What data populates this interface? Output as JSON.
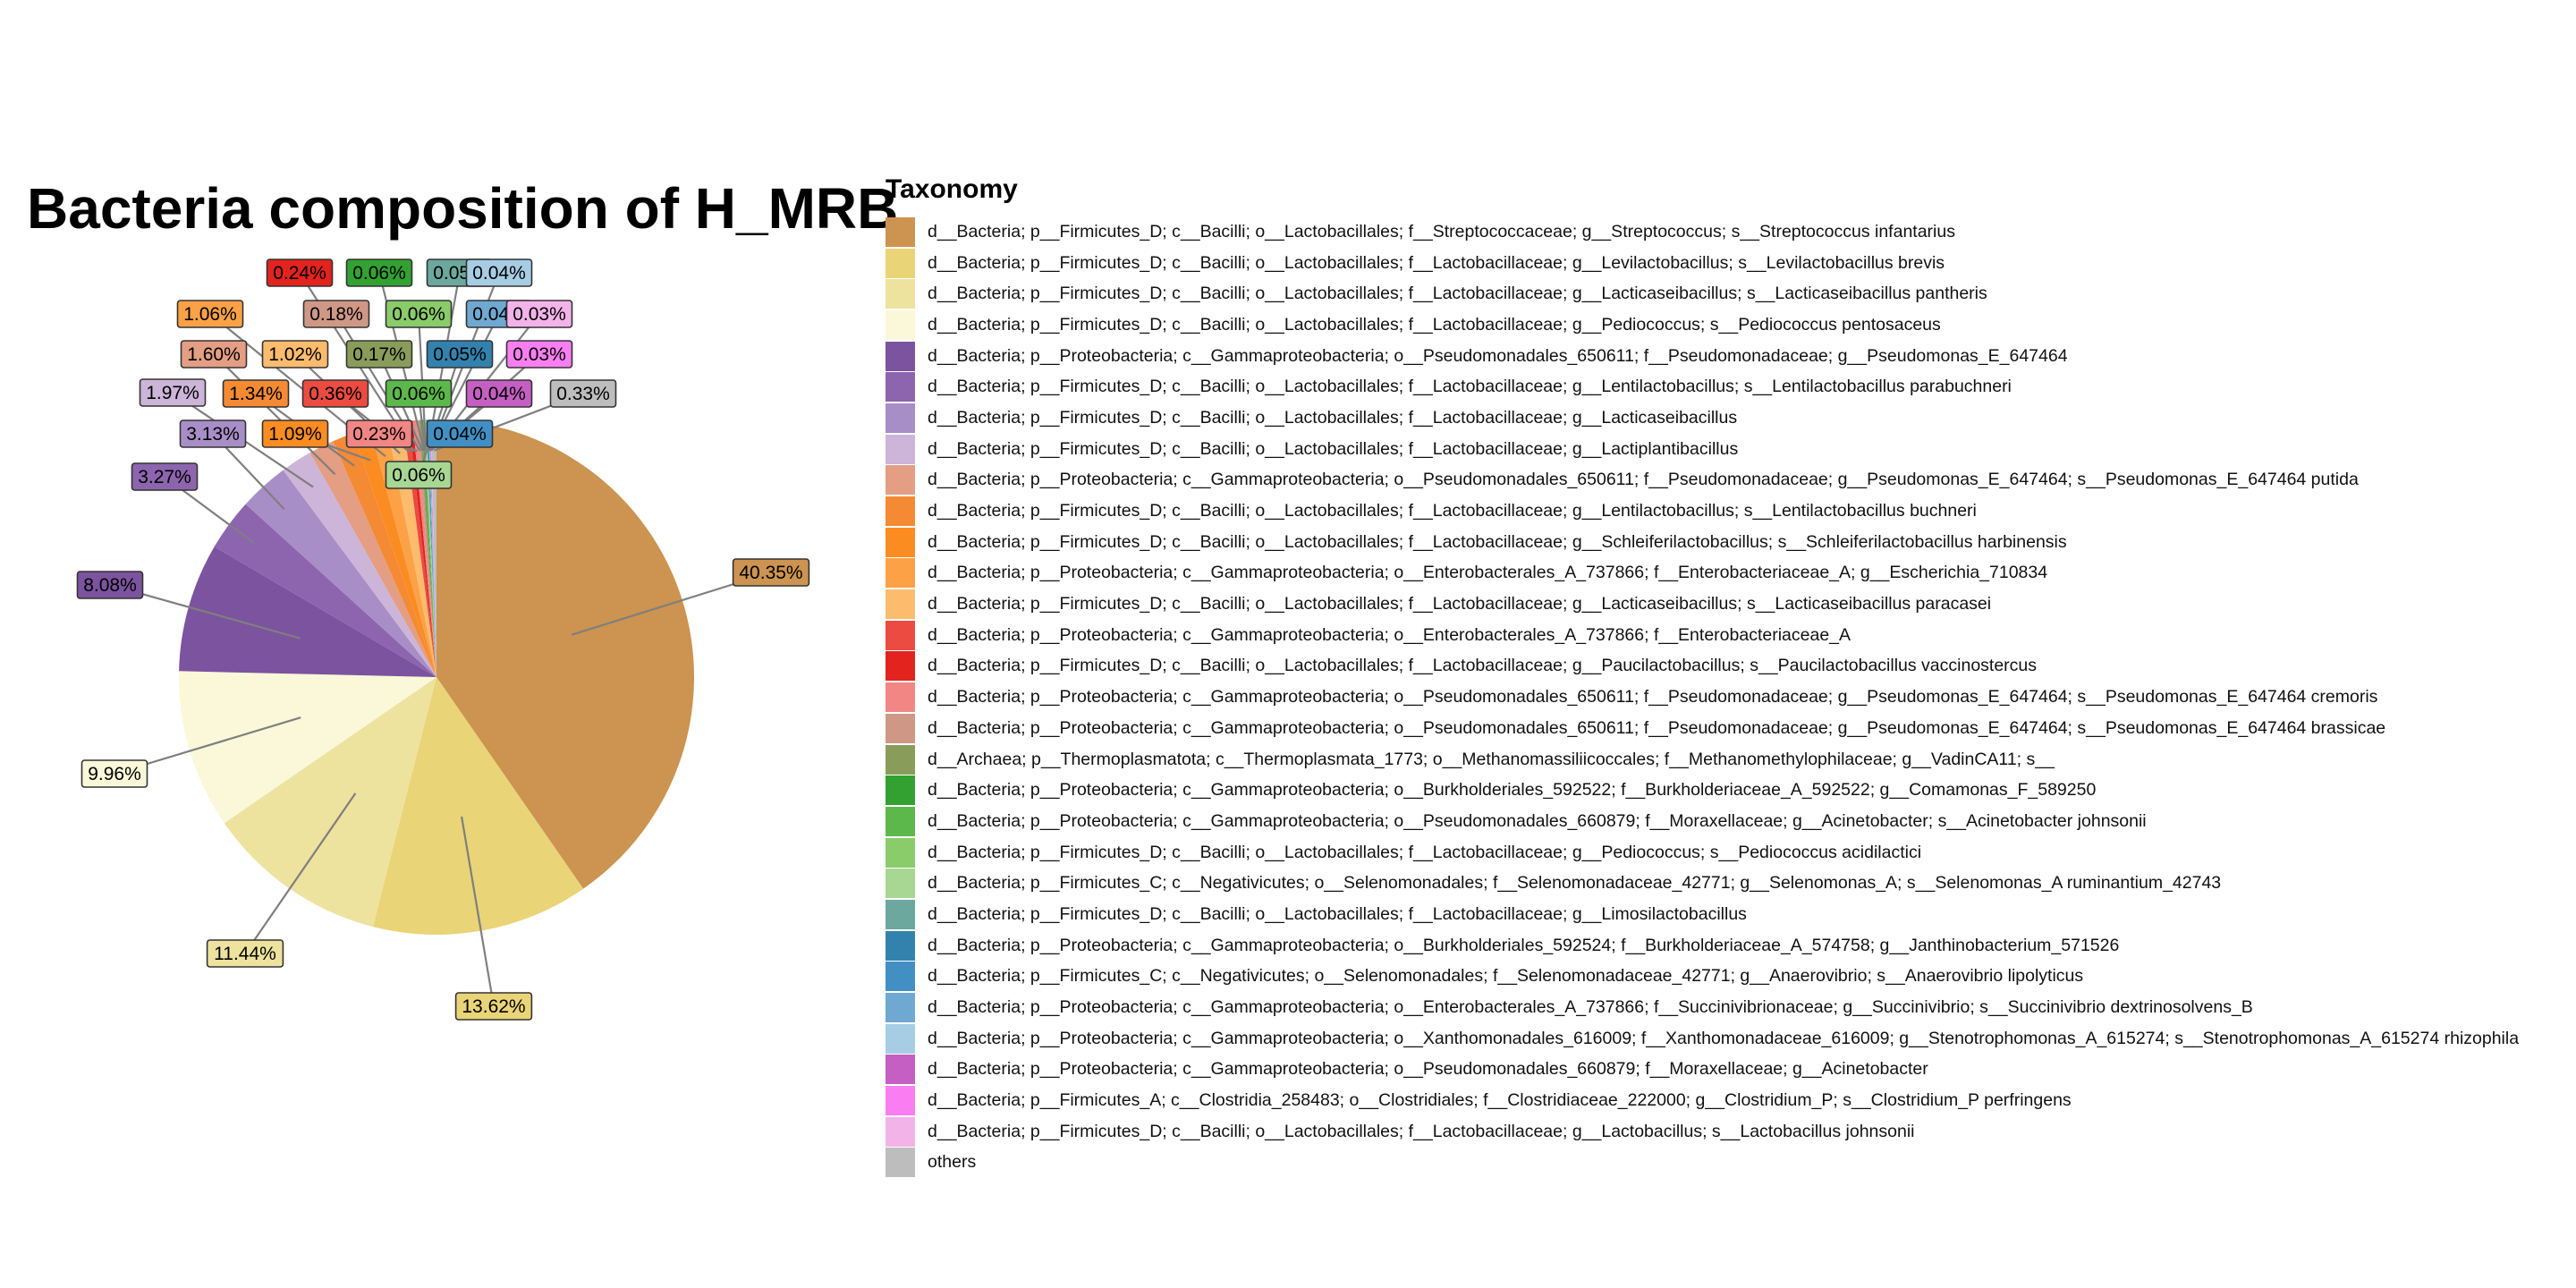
{
  "chart_data": {
    "type": "pie",
    "title": "Bacteria composition of H_MRB",
    "legend_title": "Taxonomy",
    "legend_position": "right",
    "slices": [
      {
        "label": "d__Bacteria; p__Firmicutes_D; c__Bacilli; o__Lactobacillales; f__Streptococcaceae; g__Streptococcus; s__Streptococcus infantarius",
        "value": 40.35,
        "value_label": "40.35%",
        "color": "#CD9350"
      },
      {
        "label": "d__Bacteria; p__Firmicutes_D; c__Bacilli; o__Lactobacillales; f__Lactobacillaceae; g__Levilactobacillus; s__Levilactobacillus brevis",
        "value": 13.62,
        "value_label": "13.62%",
        "color": "#E9D478"
      },
      {
        "label": "d__Bacteria; p__Firmicutes_D; c__Bacilli; o__Lactobacillales; f__Lactobacillaceae; g__Lacticaseibacillus; s__Lacticaseibacillus pantheris",
        "value": 11.44,
        "value_label": "11.44%",
        "color": "#EDE39F"
      },
      {
        "label": "d__Bacteria; p__Firmicutes_D; c__Bacilli; o__Lactobacillales; f__Lactobacillaceae; g__Pediococcus; s__Pediococcus pentosaceus",
        "value": 9.96,
        "value_label": "9.96%",
        "color": "#FAF8D9"
      },
      {
        "label": "d__Bacteria; p__Proteobacteria; c__Gammaproteobacteria; o__Pseudomonadales_650611; f__Pseudomonadaceae; g__Pseudomonas_E_647464",
        "value": 8.08,
        "value_label": "8.08%",
        "color": "#7C539E"
      },
      {
        "label": "d__Bacteria; p__Firmicutes_D; c__Bacilli; o__Lactobacillales; f__Lactobacillaceae; g__Lentilactobacillus; s__Lentilactobacillus parabuchneri",
        "value": 3.27,
        "value_label": "3.27%",
        "color": "#8D65AF"
      },
      {
        "label": "d__Bacteria; p__Firmicutes_D; c__Bacilli; o__Lactobacillales; f__Lactobacillaceae; g__Lacticaseibacillus",
        "value": 3.13,
        "value_label": "3.13%",
        "color": "#A88EC6"
      },
      {
        "label": "d__Bacteria; p__Firmicutes_D; c__Bacilli; o__Lactobacillales; f__Lactobacillaceae; g__Lactiplantibacillus",
        "value": 1.97,
        "value_label": "1.97%",
        "color": "#CCB5D9"
      },
      {
        "label": "d__Bacteria; p__Proteobacteria; c__Gammaproteobacteria; o__Pseudomonadales_650611; f__Pseudomonadaceae; g__Pseudomonas_E_647464; s__Pseudomonas_E_647464 putida",
        "value": 1.6,
        "value_label": "1.60%",
        "color": "#E39E83"
      },
      {
        "label": "d__Bacteria; p__Firmicutes_D; c__Bacilli; o__Lactobacillales; f__Lactobacillaceae; g__Lentilactobacillus; s__Lentilactobacillus buchneri",
        "value": 1.34,
        "value_label": "1.34%",
        "color": "#F48A33"
      },
      {
        "label": "d__Bacteria; p__Firmicutes_D; c__Bacilli; o__Lactobacillales; f__Lactobacillaceae; g__Schleiferilactobacillus; s__Schleiferilactobacillus harbinensis",
        "value": 1.09,
        "value_label": "1.09%",
        "color": "#FA8C22"
      },
      {
        "label": "d__Bacteria; p__Proteobacteria; c__Gammaproteobacteria; o__Enterobacterales_A_737866; f__Enterobacteriaceae_A; g__Escherichia_710834",
        "value": 1.06,
        "value_label": "1.06%",
        "color": "#FCA146"
      },
      {
        "label": "d__Bacteria; p__Firmicutes_D; c__Bacilli; o__Lactobacillales; f__Lactobacillaceae; g__Lacticaseibacillus; s__Lacticaseibacillus paracasei",
        "value": 1.02,
        "value_label": "1.02%",
        "color": "#FDBB6E"
      },
      {
        "label": "d__Bacteria; p__Proteobacteria; c__Gammaproteobacteria; o__Enterobacterales_A_737866; f__Enterobacteriaceae_A",
        "value": 0.36,
        "value_label": "0.36%",
        "color": "#EB4B41"
      },
      {
        "label": "d__Bacteria; p__Firmicutes_D; c__Bacilli; o__Lactobacillales; f__Lactobacillaceae; g__Paucilactobacillus; s__Paucilactobacillus vaccinostercus",
        "value": 0.24,
        "value_label": "0.24%",
        "color": "#E2231E"
      },
      {
        "label": "d__Bacteria; p__Proteobacteria; c__Gammaproteobacteria; o__Pseudomonadales_650611; f__Pseudomonadaceae; g__Pseudomonas_E_647464; s__Pseudomonas_E_647464 cremoris",
        "value": 0.23,
        "value_label": "0.23%",
        "color": "#F28684"
      },
      {
        "label": "d__Bacteria; p__Proteobacteria; c__Gammaproteobacteria; o__Pseudomonadales_650611; f__Pseudomonadaceae; g__Pseudomonas_E_647464; s__Pseudomonas_E_647464 brassicae",
        "value": 0.18,
        "value_label": "0.18%",
        "color": "#CF9886"
      },
      {
        "label": "d__Archaea; p__Thermoplasmatota; c__Thermoplasmata_1773; o__Methanomassiliicoccales; f__Methanomethylophilaceae; g__VadinCA11; s__",
        "value": 0.17,
        "value_label": "0.17%",
        "color": "#8A9C5A"
      },
      {
        "label": "d__Bacteria; p__Proteobacteria; c__Gammaproteobacteria; o__Burkholderiales_592522; f__Burkholderiaceae_A_592522; g__Comamonas_F_589250",
        "value": 0.06,
        "value_label": "0.06%",
        "color": "#32A132"
      },
      {
        "label": "d__Bacteria; p__Proteobacteria; c__Gammaproteobacteria; o__Pseudomonadales_660879; f__Moraxellaceae; g__Acinetobacter; s__Acinetobacter johnsonii",
        "value": 0.06,
        "value_label": "0.06%",
        "color": "#5DB84C"
      },
      {
        "label": "d__Bacteria; p__Firmicutes_D; c__Bacilli; o__Lactobacillales; f__Lactobacillaceae; g__Pediococcus; s__Pediococcus acidilactici",
        "value": 0.06,
        "value_label": "0.06%",
        "color": "#8ACB6A"
      },
      {
        "label": "d__Bacteria; p__Firmicutes_C; c__Negativicutes; o__Selenomonadales; f__Selenomonadaceae_42771; g__Selenomonas_A; s__Selenomonas_A ruminantium_42743",
        "value": 0.06,
        "value_label": "0.06%",
        "color": "#A8D693"
      },
      {
        "label": "d__Bacteria; p__Firmicutes_D; c__Bacilli; o__Lactobacillales; f__Lactobacillaceae; g__Limosilactobacillus",
        "value": 0.05,
        "value_label": "0.05%",
        "color": "#6CA89E"
      },
      {
        "label": "d__Bacteria; p__Proteobacteria; c__Gammaproteobacteria; o__Burkholderiales_592524; f__Burkholderiaceae_A_574758; g__Janthinobacterium_571526",
        "value": 0.05,
        "value_label": "0.05%",
        "color": "#3382AE"
      },
      {
        "label": "d__Bacteria; p__Firmicutes_C; c__Negativicutes; o__Selenomonadales; f__Selenomonadaceae_42771; g__Anaerovibrio; s__Anaerovibrio lipolyticus",
        "value": 0.04,
        "value_label": "0.04%",
        "color": "#428FC4"
      },
      {
        "label": "d__Bacteria; p__Proteobacteria; c__Gammaproteobacteria; o__Enterobacterales_A_737866; f__Succinivibrionaceae; g__Succinivibrio; s__Succinivibrio dextrinosolvens_B",
        "value": 0.04,
        "value_label": "0.04%",
        "color": "#6FA8D1"
      },
      {
        "label": "d__Bacteria; p__Proteobacteria; c__Gammaproteobacteria; o__Xanthomonadales_616009; f__Xanthomonadaceae_616009; g__Stenotrophomonas_A_615274; s__Stenotrophomonas_A_615274 rhizophila",
        "value": 0.04,
        "value_label": "0.04%",
        "color": "#A7CDE4"
      },
      {
        "label": "d__Bacteria; p__Proteobacteria; c__Gammaproteobacteria; o__Pseudomonadales_660879; f__Moraxellaceae; g__Acinetobacter",
        "value": 0.04,
        "value_label": "0.04%",
        "color": "#C55FC3"
      },
      {
        "label": "d__Bacteria; p__Firmicutes_A; c__Clostridia_258483; o__Clostridiales; f__Clostridiaceae_222000; g__Clostridium_P; s__Clostridium_P perfringens",
        "value": 0.03,
        "value_label": "0.03%",
        "color": "#F97EF1"
      },
      {
        "label": "d__Bacteria; p__Firmicutes_D; c__Bacilli; o__Lactobacillales; f__Lactobacillaceae; g__Lactobacillus; s__Lactobacillus johnsonii",
        "value": 0.03,
        "value_label": "0.03%",
        "color": "#F2B3E9"
      },
      {
        "label": "others",
        "value": 0.33,
        "value_label": "0.33%",
        "color": "#BDBDBD"
      }
    ]
  }
}
